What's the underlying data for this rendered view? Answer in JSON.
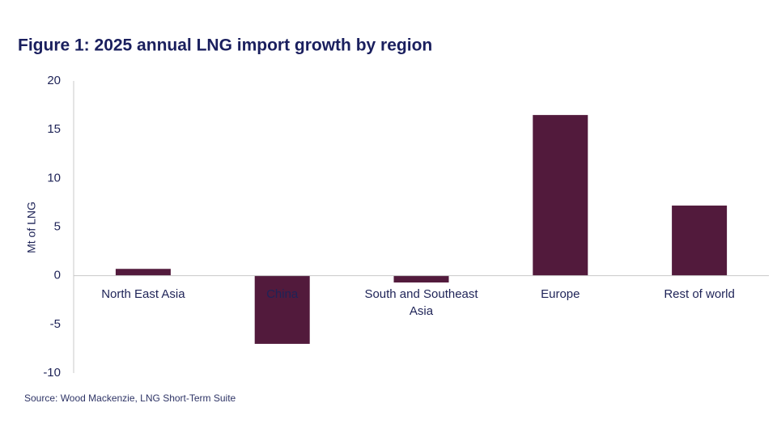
{
  "chart_data": {
    "type": "bar",
    "title": "Figure 1: 2025 annual LNG import growth by region",
    "y_label": "Mt of LNG",
    "source": "Source: Wood Mackenzie, LNG Short-Term Suite",
    "categories": [
      "North East Asia",
      "China",
      "South and Southeast Asia",
      "Europe",
      "Rest of world"
    ],
    "values": [
      0.7,
      -7.0,
      -0.7,
      16.5,
      7.2
    ],
    "color": "#521a3c",
    "ylim": [
      -10,
      20
    ],
    "yticks": [
      -10,
      -5,
      0,
      5,
      10,
      15,
      20
    ],
    "grid": false
  }
}
